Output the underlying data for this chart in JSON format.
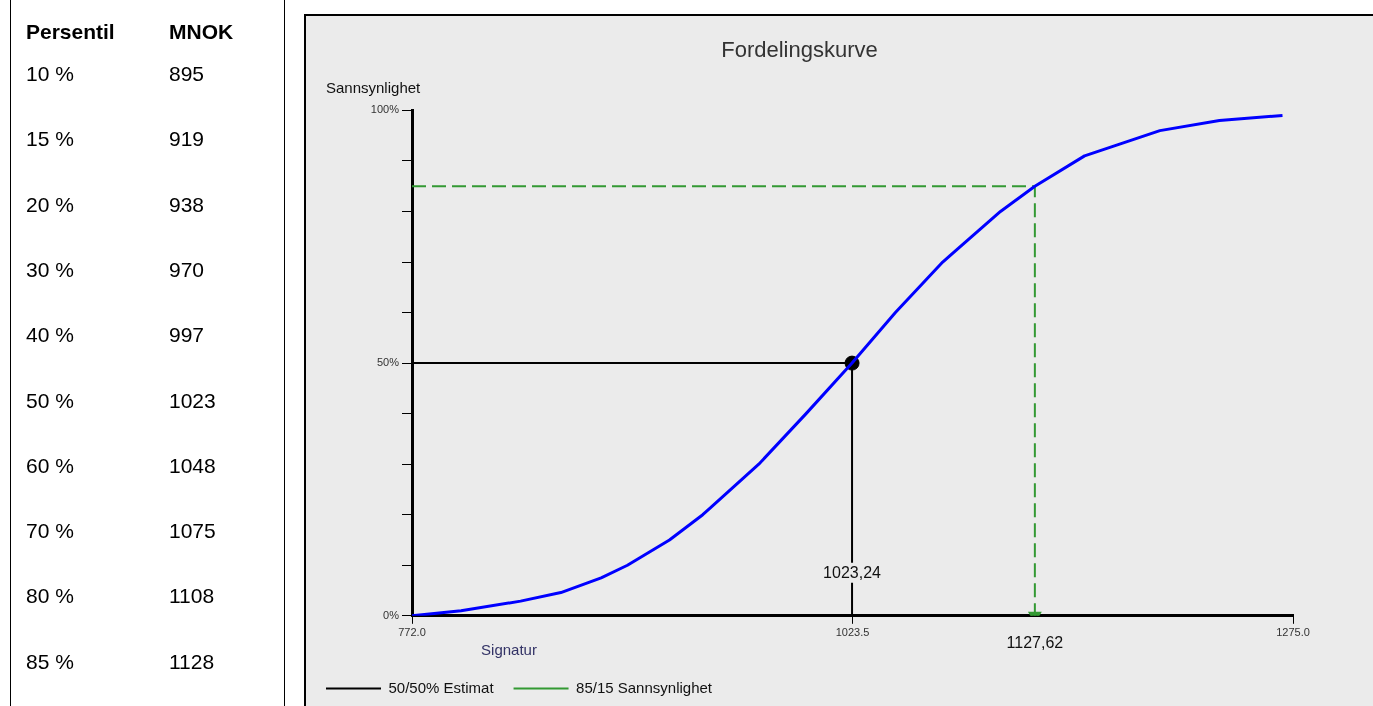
{
  "chart_data": [
    {
      "type": "other",
      "annotations": [
        "Persentil",
        "MNOK",
        "10 %",
        "895",
        "15 %",
        "919",
        "20 %",
        "938",
        "30 %",
        "970",
        "40 %",
        "997",
        "50 %",
        "1023",
        "60 %",
        "1048",
        "70 %",
        "1075",
        "80 %",
        "1108",
        "85 %",
        "1128"
      ]
    },
    {
      "type": "line",
      "title": "Fordelingskurve",
      "ylabel": "Sannsynlighet",
      "legend_title": "Signatur",
      "legend": "bottom left",
      "grid": false,
      "xlim": [
        772,
        1275
      ],
      "xticks": [
        {
          "value": 772,
          "label": "772.0"
        },
        {
          "value": 1023.5,
          "label": "1023.5"
        },
        {
          "value": 1275,
          "label": "1275.0"
        }
      ],
      "ylim": [
        0,
        100
      ],
      "yticks": [
        {
          "value": 0,
          "label": "0%"
        },
        {
          "value": 10,
          "label": null
        },
        {
          "value": 20,
          "label": null
        },
        {
          "value": 30,
          "label": null
        },
        {
          "value": 40,
          "label": null
        },
        {
          "value": 50,
          "label": "50%"
        },
        {
          "value": 60,
          "label": null
        },
        {
          "value": 70,
          "label": null
        },
        {
          "value": 80,
          "label": null
        },
        {
          "value": 90,
          "label": null
        },
        {
          "value": 100,
          "label": "100%"
        }
      ],
      "annotations": [
        {
          "text": "1023,24",
          "x": 1023.24,
          "y": 0
        },
        {
          "text": "1127,62",
          "x": 1127.62,
          "y": 0
        }
      ],
      "series": [
        {
          "type": "line",
          "color": "#0000ff",
          "marker": "none",
          "x": [
            772,
            800,
            834,
            857,
            880,
            895,
            919,
            938,
            970,
            997,
            1023.24,
            1048,
            1075,
            1108,
            1127.62,
            1156,
            1199,
            1233,
            1269
          ],
          "values": [
            0,
            1,
            2.9,
            4.6,
            7.5,
            10,
            15,
            20,
            30,
            40,
            50,
            60,
            70,
            80,
            85,
            91,
            96,
            98,
            99
          ]
        },
        {
          "type": "line",
          "name": "50/50% Estimat",
          "color": "#000000",
          "marker": "none",
          "line_style": "solid",
          "x": [
            772,
            1023.24,
            1023.24
          ],
          "values": [
            50,
            50,
            0
          ]
        },
        {
          "type": "line",
          "name": "85/15 Sannsynlighet",
          "color": "#339933",
          "marker": "none",
          "line_style": "dashed",
          "x": [
            772,
            1127.62,
            1127.62
          ],
          "values": [
            85,
            85,
            0
          ]
        },
        {
          "type": "scatter",
          "color": "#000000",
          "marker": "circle",
          "x": [
            1023.24
          ],
          "values": [
            50
          ]
        }
      ]
    }
  ]
}
